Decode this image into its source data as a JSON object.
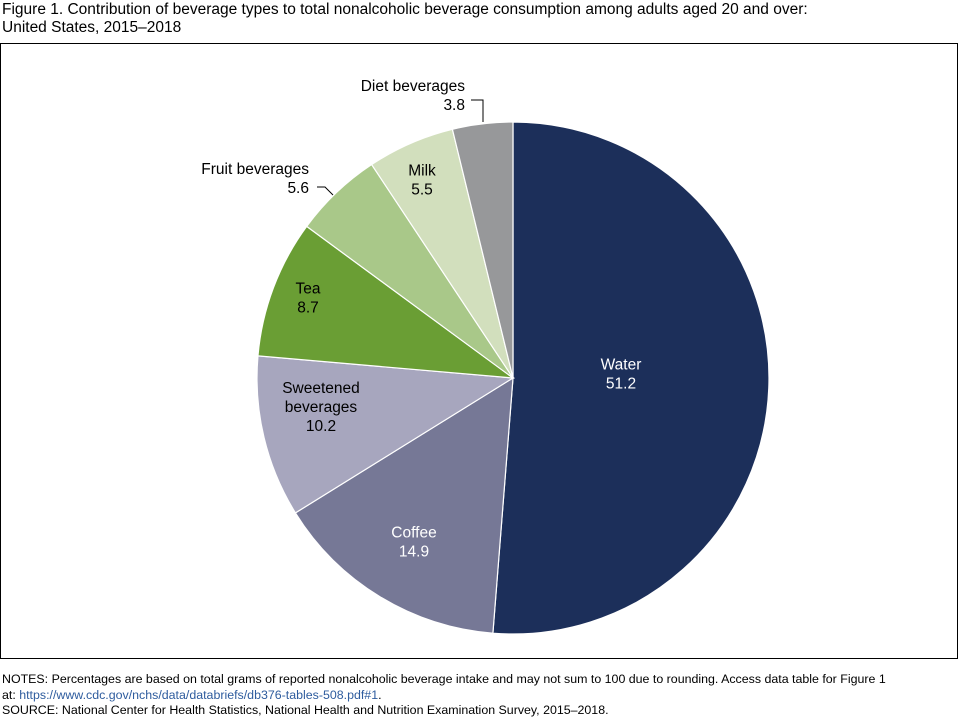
{
  "figure": {
    "title_line1": "Figure 1. Contribution of beverage types to total nonalcoholic beverage consumption among adults aged 20 and over:",
    "title_line2": "United States, 2015–2018"
  },
  "chart_data": {
    "type": "pie",
    "title": "Figure 1. Contribution of beverage types to total nonalcoholic beverage consumption among adults aged 20 and over: United States, 2015–2018",
    "unit": "percent",
    "start_angle": "12 o'clock, clockwise",
    "slices": [
      {
        "key": "water",
        "label": [
          "Water"
        ],
        "value": 51.2,
        "display": "51.2",
        "color": "#1c2f5a",
        "text_color": "#ffffff",
        "label_position": "inside"
      },
      {
        "key": "coffee",
        "label": [
          "Coffee"
        ],
        "value": 14.9,
        "display": "14.9",
        "color": "#767896",
        "text_color": "#ffffff",
        "label_position": "inside"
      },
      {
        "key": "sweetened-beverages",
        "label": [
          "Sweetened",
          "beverages"
        ],
        "value": 10.2,
        "display": "10.2",
        "color": "#a7a6be",
        "text_color": "#000000",
        "label_position": "inside"
      },
      {
        "key": "tea",
        "label": [
          "Tea"
        ],
        "value": 8.7,
        "display": "8.7",
        "color": "#6a9e34",
        "text_color": "#000000",
        "label_position": "inside"
      },
      {
        "key": "fruit-beverages",
        "label": [
          "Fruit beverages"
        ],
        "value": 5.6,
        "display": "5.6",
        "color": "#a9c889",
        "text_color": "#000000",
        "label_position": "outside"
      },
      {
        "key": "milk",
        "label": [
          "Milk"
        ],
        "value": 5.5,
        "display": "5.5",
        "color": "#d2dfbd",
        "text_color": "#000000",
        "label_position": "inside"
      },
      {
        "key": "diet-beverages",
        "label": [
          "Diet beverages"
        ],
        "value": 3.8,
        "display": "3.8",
        "color": "#97989a",
        "text_color": "#000000",
        "label_position": "outside"
      }
    ]
  },
  "notes": {
    "line1": "NOTES: Percentages are based on total grams of reported nonalcoholic beverage intake and may not sum to 100 due to rounding. Access data table for Figure 1",
    "line2_prefix": "at: ",
    "link": "https://www.cdc.gov/nchs/data/databriefs/db376-tables-508.pdf#1",
    "line2_suffix": ".",
    "source": "SOURCE: National Center for Health Statistics, National Health and Nutrition Examination Survey, 2015–2018."
  }
}
